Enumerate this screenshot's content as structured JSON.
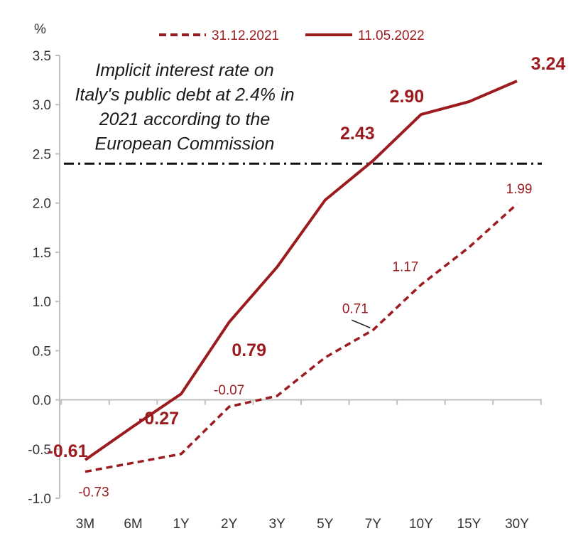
{
  "colors": {
    "series": "#9b1b1f",
    "reference": "#111111",
    "axis": "#bfbfbf",
    "text": "#333333"
  },
  "chart_data": {
    "type": "line",
    "unit_label": "%",
    "categories": [
      "3M",
      "6M",
      "1Y",
      "2Y",
      "3Y",
      "5Y",
      "7Y",
      "10Y",
      "15Y",
      "30Y"
    ],
    "ylim": [
      -1.0,
      3.5
    ],
    "yticks": [
      "3.5",
      "3.0",
      "2.5",
      "2.0",
      "1.5",
      "1.0",
      "0.5",
      "0.0",
      "-0.5",
      "-1.0"
    ],
    "ytick_values": [
      3.5,
      3.0,
      2.5,
      2.0,
      1.5,
      1.0,
      0.5,
      0.0,
      -0.5,
      -1.0
    ],
    "legend_position": "top",
    "series": [
      {
        "name": "31.12.2021",
        "style": "dashed",
        "values": [
          -0.73,
          -0.64,
          -0.55,
          -0.07,
          0.04,
          0.43,
          0.71,
          1.17,
          1.55,
          1.99
        ]
      },
      {
        "name": "11.05.2022",
        "style": "solid",
        "values": [
          -0.61,
          -0.27,
          0.06,
          0.79,
          1.35,
          2.03,
          2.43,
          2.9,
          3.03,
          3.24
        ]
      }
    ],
    "reference_line": {
      "value": 2.4,
      "style": "dash-dot"
    },
    "annotation_lines": [
      "Implicit  interest rate on",
      "Italy's public debt at 2.4% in",
      "2021 according to the",
      "European Commission"
    ],
    "data_labels": [
      {
        "series": 1,
        "index": 0,
        "text": "-0.61"
      },
      {
        "series": 1,
        "index": 1,
        "text": "-0.27"
      },
      {
        "series": 1,
        "index": 3,
        "text": "0.79"
      },
      {
        "series": 1,
        "index": 6,
        "text": "2.43"
      },
      {
        "series": 1,
        "index": 7,
        "text": "2.90"
      },
      {
        "series": 1,
        "index": 9,
        "text": "3.24"
      },
      {
        "series": 0,
        "index": 0,
        "text": "-0.73"
      },
      {
        "series": 0,
        "index": 3,
        "text": "-0.07"
      },
      {
        "series": 0,
        "index": 6,
        "text": "0.71"
      },
      {
        "series": 0,
        "index": 7,
        "text": "1.17"
      },
      {
        "series": 0,
        "index": 9,
        "text": "1.99"
      }
    ]
  }
}
